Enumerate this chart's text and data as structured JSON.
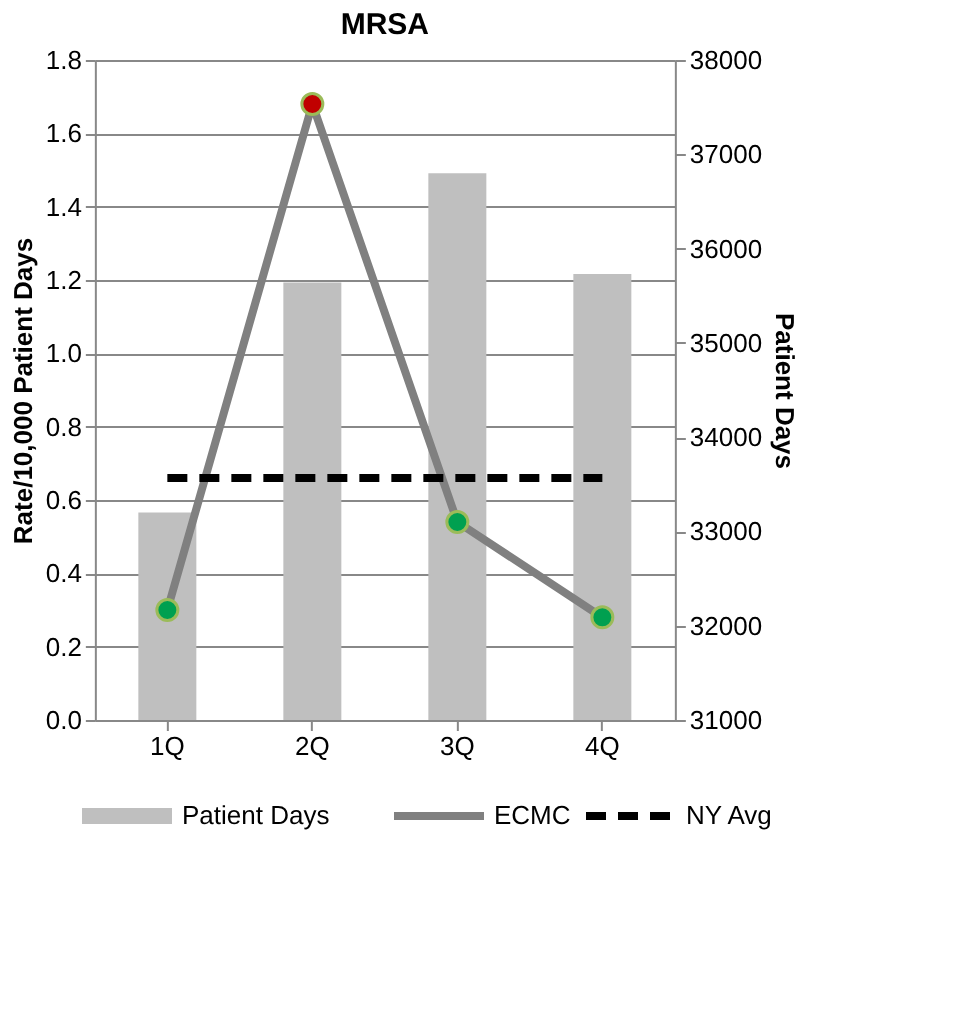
{
  "chart_data": {
    "type": "line",
    "title": "MRSA",
    "ylabel": "Rate/10,000 Patient Days",
    "y2label": "Patient Days",
    "categories": [
      "1Q",
      "2Q",
      "3Q",
      "4Q"
    ],
    "series": [
      {
        "name": "Patient Days",
        "type": "bar",
        "axis": "y2",
        "color": "#bfbfbf",
        "values": [
          33200,
          35640,
          36800,
          35730
        ]
      },
      {
        "name": "ECMC",
        "color": "#808080",
        "colors": [
          "#00a050",
          "#c00000",
          "#00a050",
          "#00a050"
        ],
        "marker": "circle",
        "line_style": "solid",
        "values": [
          0.3,
          1.68,
          0.54,
          0.28
        ]
      },
      {
        "name": "NY Avg",
        "color": "#000000",
        "marker": "none",
        "line_style": "dashed",
        "values": [
          0.66,
          0.66,
          0.66,
          0.66
        ]
      }
    ],
    "ylim": [
      0,
      1.8
    ],
    "yticks": [
      {
        "value": 0,
        "label": "0.0"
      },
      0.2,
      0.4,
      0.6,
      0.8,
      {
        "value": 1,
        "label": "1.0"
      },
      1.2,
      1.4,
      1.6,
      1.8
    ],
    "y2lim": [
      31000,
      38000
    ],
    "y2ticks": [
      31000,
      32000,
      33000,
      34000,
      35000,
      36000,
      37000,
      38000
    ],
    "grid": "y",
    "legend": "bottom"
  }
}
